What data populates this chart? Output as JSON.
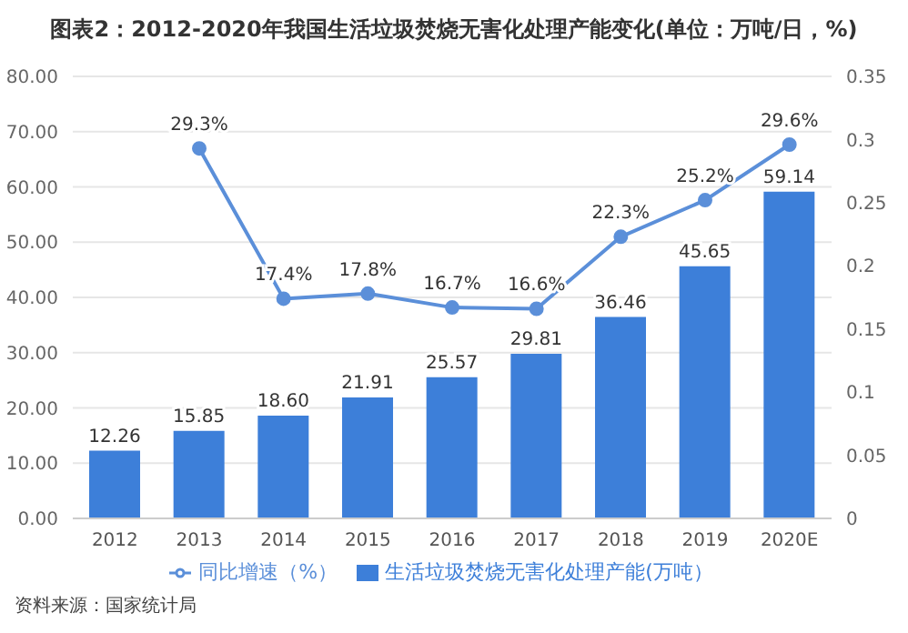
{
  "chart_data": {
    "type": "bar",
    "title": "图表2：2012-2020年我国生活垃圾焚烧无害化处理产能变化(单位：万吨/日，%)",
    "categories": [
      "2012",
      "2013",
      "2014",
      "2015",
      "2016",
      "2017",
      "2018",
      "2019",
      "2020E"
    ],
    "series": [
      {
        "name": "生活垃圾焚烧无害化处理产能(万吨）",
        "color": "#3d7fd9",
        "values": [
          12.26,
          15.85,
          18.6,
          21.91,
          25.57,
          29.81,
          36.46,
          45.65,
          59.14
        ],
        "value_labels": [
          "12.26",
          "15.85",
          "18.60",
          "21.91",
          "25.57",
          "29.81",
          "36.46",
          "45.65",
          "59.14"
        ]
      },
      {
        "name": "同比增速（%）",
        "type": "line",
        "axis": "y2",
        "color": "#5b8fd9",
        "values": [
          null,
          0.293,
          0.174,
          0.178,
          0.167,
          0.166,
          0.223,
          0.252,
          0.296
        ],
        "value_labels": [
          null,
          "29.3%",
          "17.4%",
          "17.8%",
          "16.7%",
          "16.6%",
          "22.3%",
          "25.2%",
          "29.6%"
        ]
      }
    ],
    "ylim": [
      0,
      80
    ],
    "yticks": [
      {
        "value": 0,
        "label": "0.00"
      },
      {
        "value": 10,
        "label": "10.00"
      },
      {
        "value": 20,
        "label": "20.00"
      },
      {
        "value": 30,
        "label": "30.00"
      },
      {
        "value": 40,
        "label": "40.00"
      },
      {
        "value": 50,
        "label": "50.00"
      },
      {
        "value": 60,
        "label": "60.00"
      },
      {
        "value": 70,
        "label": "70.00"
      },
      {
        "value": 80,
        "label": "80.00"
      }
    ],
    "y2lim": [
      0,
      0.35
    ],
    "y2ticks": [
      0,
      0.05,
      0.1,
      0.15,
      0.2,
      0.25,
      0.3,
      0.35
    ],
    "grid": "y",
    "legend": "bottom",
    "marker": "circle",
    "annotations": [
      "资料来源：国家统计局"
    ]
  }
}
